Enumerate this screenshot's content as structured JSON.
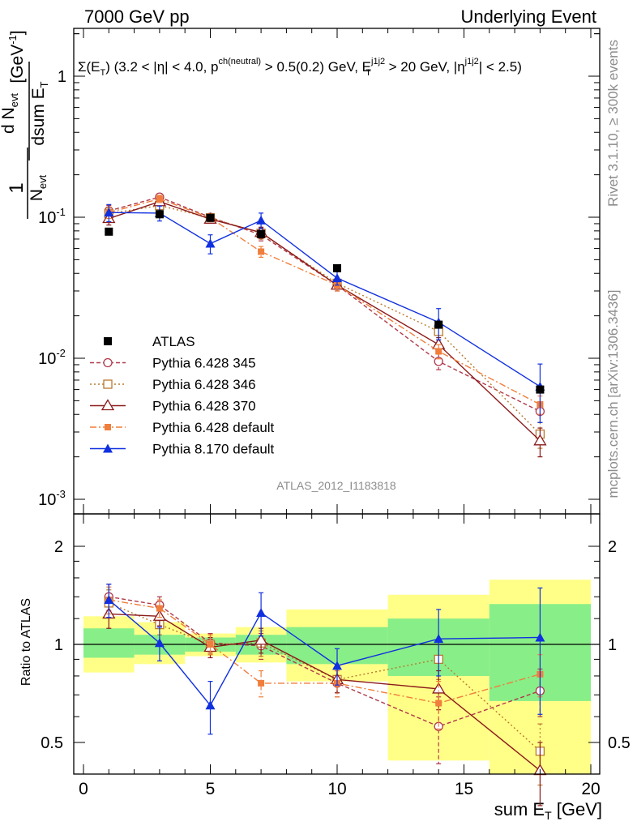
{
  "header": {
    "left": "7000 GeV pp",
    "right": "Underlying Event"
  },
  "side": {
    "rivet": "Rivet 3.1.10, ≥ 300k events",
    "mcplots": "mcplots.cern.ch [arXiv:1306.3436]"
  },
  "chart_data": {
    "type": "scatter",
    "title": "Σ(E_T) (3.2 < |η| < 4.0, p^ch(neutral) > 0.5(0.2) GeV, E_T^j1j2 > 20 GeV, |η^j1j2| < 2.5)",
    "analysis_label": "ATLAS_2012_I1183818",
    "ylabel": "1/N_evt dN_evt/dsum E_T [GeV^-1]",
    "ratio_ylabel": "Ratio to ATLAS",
    "xlabel": "sum E_T [GeV]",
    "xlim": [
      0,
      20
    ],
    "ylim": [
      0.001,
      2
    ],
    "yscale": "log",
    "ratio_ylim": [
      0.3,
      2.4
    ],
    "x_ticks": [
      "0",
      "5",
      "10",
      "15",
      "20"
    ],
    "y_ticks": [
      "10^-3",
      "10^-2",
      "10^-1",
      "1"
    ],
    "ratio_ticks": [
      "0.5",
      "1",
      "2"
    ],
    "x": [
      1,
      3,
      5,
      7,
      10,
      14,
      18
    ],
    "bin_edges": [
      0,
      2,
      4,
      6,
      8,
      12,
      16,
      20
    ],
    "reference": {
      "name": "ATLAS",
      "values": [
        0.079,
        0.105,
        0.099,
        0.076,
        0.0435,
        0.0173,
        0.006
      ],
      "band_inner": [
        [
          0.91,
          1.12
        ],
        [
          0.93,
          1.07
        ],
        [
          0.95,
          1.05
        ],
        [
          0.93,
          1.07
        ],
        [
          0.87,
          1.13
        ],
        [
          0.8,
          1.2
        ],
        [
          0.67,
          1.33
        ]
      ],
      "band_outer": [
        [
          0.82,
          1.22
        ],
        [
          0.87,
          1.17
        ],
        [
          0.92,
          1.08
        ],
        [
          0.88,
          1.13
        ],
        [
          0.77,
          1.28
        ],
        [
          0.44,
          1.42
        ],
        [
          0.33,
          1.58
        ]
      ]
    },
    "series": [
      {
        "name": "Pythia 6.428 345",
        "color": "#b0394a",
        "style": "dashed",
        "marker": "open-circle",
        "values": [
          0.111,
          0.139,
          0.1,
          0.075,
          0.033,
          0.0095,
          0.0042
        ],
        "errors": [
          0.01,
          0.008,
          0.006,
          0.007,
          0.003,
          0.0012,
          0.0007
        ],
        "ratio": [
          1.4,
          1.32,
          1.01,
          0.99,
          0.76,
          0.56,
          0.72
        ],
        "ratio_errors": [
          0.13,
          0.08,
          0.07,
          0.09,
          0.07,
          0.13,
          0.12
        ]
      },
      {
        "name": "Pythia 6.428 346",
        "color": "#b87a2e",
        "style": "dotted",
        "marker": "open-square",
        "values": [
          0.106,
          0.121,
          0.099,
          0.077,
          0.034,
          0.0155,
          0.0029
        ],
        "errors": [
          0.01,
          0.008,
          0.006,
          0.007,
          0.003,
          0.002,
          0.0006
        ],
        "ratio": [
          1.34,
          1.15,
          1.0,
          1.01,
          0.78,
          0.9,
          0.47
        ],
        "ratio_errors": [
          0.13,
          0.08,
          0.07,
          0.09,
          0.07,
          0.12,
          0.1
        ]
      },
      {
        "name": "Pythia 6.428 370",
        "color": "#8b1a1a",
        "style": "solid",
        "marker": "open-triangle",
        "values": [
          0.098,
          0.129,
          0.097,
          0.078,
          0.033,
          0.0125,
          0.0026
        ],
        "errors": [
          0.01,
          0.008,
          0.006,
          0.007,
          0.003,
          0.0015,
          0.0006
        ],
        "ratio": [
          1.24,
          1.22,
          0.98,
          1.03,
          0.78,
          0.73,
          0.41
        ],
        "ratio_errors": [
          0.12,
          0.08,
          0.07,
          0.09,
          0.07,
          0.1,
          0.09
        ]
      },
      {
        "name": "Pythia 6.428 default",
        "color": "#f07e3c",
        "style": "dashdot",
        "marker": "filled-square",
        "values": [
          0.108,
          0.135,
          0.099,
          0.057,
          0.033,
          0.0112,
          0.0047
        ],
        "errors": [
          0.01,
          0.008,
          0.006,
          0.005,
          0.003,
          0.0013,
          0.0007
        ],
        "ratio": [
          1.37,
          1.29,
          1.0,
          0.76,
          0.76,
          0.66,
          0.81
        ],
        "ratio_errors": [
          0.13,
          0.08,
          0.07,
          0.07,
          0.07,
          0.11,
          0.12
        ]
      },
      {
        "name": "Pythia 8.170 default",
        "color": "#1030e0",
        "style": "solid",
        "marker": "filled-triangle",
        "values": [
          0.108,
          0.107,
          0.065,
          0.095,
          0.037,
          0.018,
          0.0063
        ],
        "errors": [
          0.015,
          0.013,
          0.01,
          0.012,
          0.004,
          0.0045,
          0.0028
        ],
        "ratio": [
          1.37,
          1.01,
          0.65,
          1.25,
          0.86,
          1.04,
          1.05
        ],
        "ratio_errors": [
          0.16,
          0.12,
          0.12,
          0.19,
          0.11,
          0.24,
          0.44
        ]
      }
    ]
  }
}
